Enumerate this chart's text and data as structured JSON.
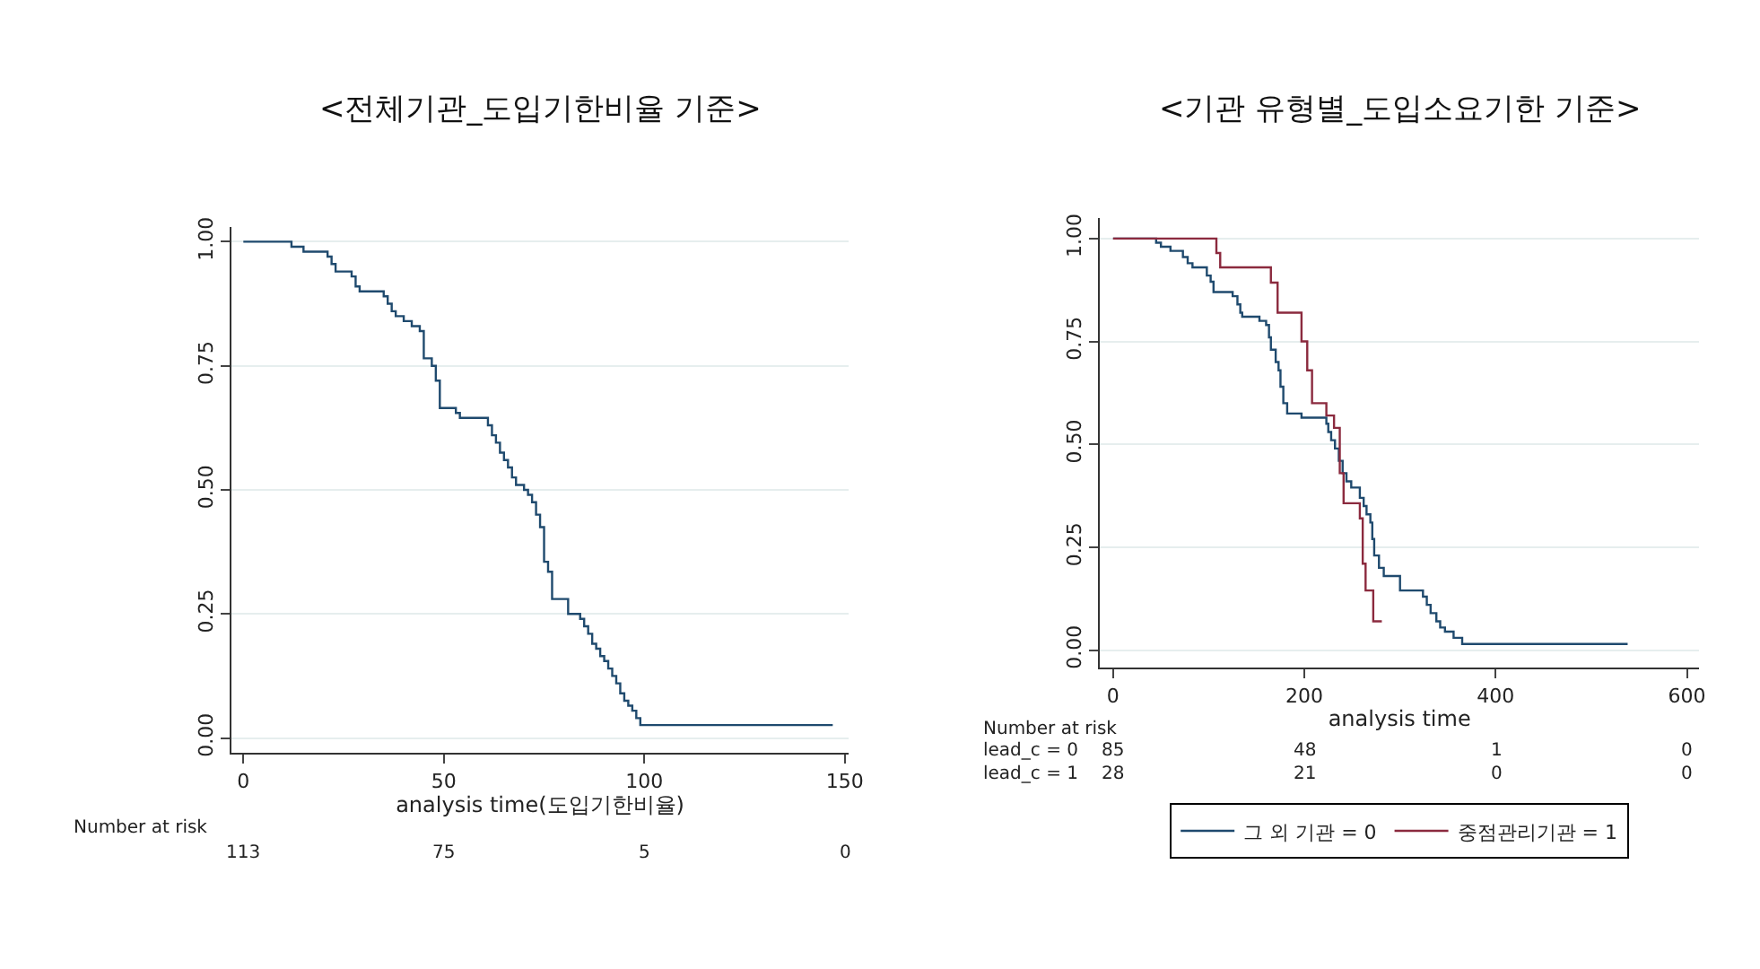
{
  "chart_data": [
    {
      "type": "step",
      "title": "<전체기관_도입기한비율 기준>",
      "xlabel": "analysis time(도입기한비율)",
      "xlim": [
        -3,
        151
      ],
      "xticks": [
        0,
        50,
        100,
        150
      ],
      "ylim": [
        -0.03,
        1.03
      ],
      "yticks": [
        {
          "value": 0,
          "label": "0.00"
        },
        {
          "value": 0.25,
          "label": "0.25"
        },
        {
          "value": 0.5,
          "label": "0.50"
        },
        {
          "value": 0.75,
          "label": "0.75"
        },
        {
          "value": 1,
          "label": "1.00"
        }
      ],
      "grid": "y",
      "legend": false,
      "series": [
        {
          "color": "#1f4a6e",
          "x": [
            0,
            12,
            15,
            21,
            22,
            23,
            27,
            28,
            29,
            35,
            36,
            37,
            38,
            40,
            42,
            44,
            45,
            47,
            48,
            49,
            53,
            54,
            61,
            62,
            63,
            64,
            65,
            66,
            67,
            68,
            70,
            71,
            72,
            73,
            74,
            75,
            76,
            77,
            81,
            84,
            85,
            86,
            87,
            88,
            89,
            90,
            91,
            92,
            93,
            94,
            95,
            96,
            97,
            98,
            99,
            147
          ],
          "values": [
            1,
            0.99,
            0.98,
            0.97,
            0.955,
            0.94,
            0.93,
            0.91,
            0.9,
            0.89,
            0.875,
            0.86,
            0.85,
            0.84,
            0.83,
            0.82,
            0.765,
            0.75,
            0.72,
            0.665,
            0.655,
            0.645,
            0.63,
            0.61,
            0.595,
            0.575,
            0.56,
            0.545,
            0.525,
            0.51,
            0.5,
            0.49,
            0.475,
            0.45,
            0.425,
            0.355,
            0.335,
            0.28,
            0.25,
            0.24,
            0.225,
            0.21,
            0.19,
            0.18,
            0.165,
            0.155,
            0.14,
            0.125,
            0.11,
            0.09,
            0.075,
            0.065,
            0.055,
            0.04,
            0.026,
            0.026
          ]
        }
      ],
      "annotations": [
        "Number at risk",
        "113",
        "75",
        "5",
        "0"
      ]
    },
    {
      "type": "step",
      "title": "<기관 유형별_도입소요기한 기준>",
      "xlabel": "analysis time",
      "xlim": [
        -14,
        613
      ],
      "xticks": [
        0,
        200,
        400,
        600
      ],
      "ylim": [
        -0.043,
        1.05
      ],
      "yticks": [
        {
          "value": 0,
          "label": "0.00"
        },
        {
          "value": 0.25,
          "label": "0.25"
        },
        {
          "value": 0.5,
          "label": "0.50"
        },
        {
          "value": 0.75,
          "label": "0.75"
        },
        {
          "value": 1,
          "label": "1.00"
        }
      ],
      "grid": "y",
      "legend": "bottom",
      "series": [
        {
          "name": "그 외 기관 = 0",
          "color": "#1f4a6e",
          "x": [
            0,
            45,
            50,
            60,
            73,
            78,
            83,
            98,
            102,
            105,
            125,
            130,
            133,
            135,
            153,
            160,
            163,
            165,
            170,
            173,
            175,
            178,
            182,
            197,
            223,
            225,
            228,
            232,
            236,
            240,
            244,
            249,
            258,
            262,
            265,
            269,
            271,
            273,
            278,
            283,
            300,
            324,
            328,
            332,
            338,
            342,
            347,
            356,
            365,
            538
          ],
          "values": [
            1,
            0.99,
            0.98,
            0.97,
            0.955,
            0.94,
            0.93,
            0.91,
            0.895,
            0.87,
            0.86,
            0.84,
            0.82,
            0.81,
            0.8,
            0.79,
            0.76,
            0.73,
            0.7,
            0.68,
            0.64,
            0.6,
            0.575,
            0.565,
            0.55,
            0.53,
            0.51,
            0.49,
            0.46,
            0.43,
            0.41,
            0.395,
            0.37,
            0.35,
            0.33,
            0.31,
            0.27,
            0.23,
            0.2,
            0.18,
            0.145,
            0.13,
            0.11,
            0.09,
            0.07,
            0.055,
            0.045,
            0.03,
            0.015,
            0.015
          ]
        },
        {
          "name": "중점관리기관 = 1",
          "color": "#8b2a3e",
          "x": [
            0,
            108,
            112,
            165,
            172,
            197,
            203,
            208,
            223,
            231,
            237,
            241,
            258,
            261,
            264,
            272,
            281
          ],
          "values": [
            1,
            0.965,
            0.93,
            0.893,
            0.82,
            0.75,
            0.68,
            0.6,
            0.57,
            0.54,
            0.43,
            0.357,
            0.32,
            0.21,
            0.145,
            0.07,
            0.07
          ]
        }
      ],
      "annotations": [
        "Number at risk",
        "lead_c = 0",
        "85",
        "48",
        "1",
        "0",
        "lead_c = 1",
        "28",
        "21",
        "0",
        "0"
      ]
    }
  ]
}
